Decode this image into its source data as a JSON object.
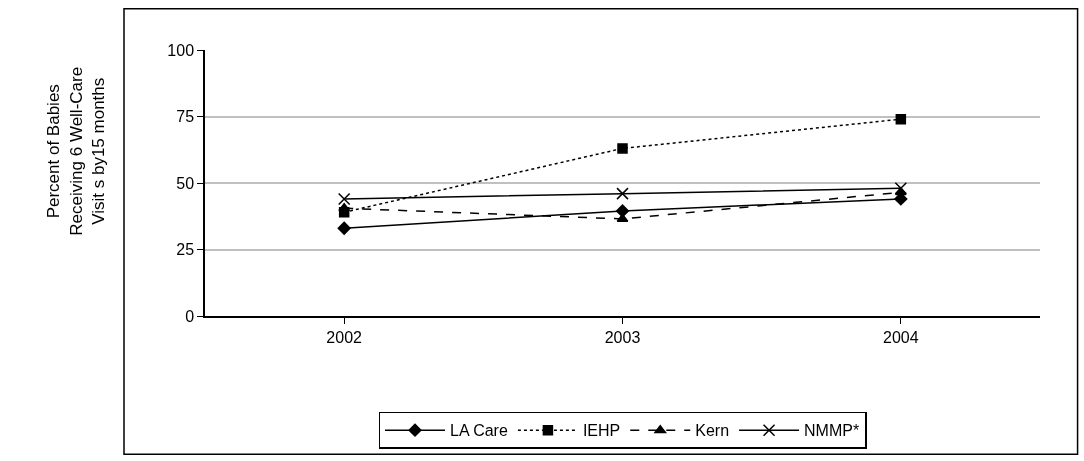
{
  "chart_data": {
    "type": "line",
    "ylabel": "Percent of Babies\nReceiving 6 Well-Care\nVisit s by15 months",
    "categories": [
      "2002",
      "2003",
      "2004"
    ],
    "series": [
      {
        "name": "LA Care",
        "color": "#000000",
        "values": [
          33,
          39.5,
          44
        ],
        "marker": "diamond",
        "line_style": "solid"
      },
      {
        "name": "IEHP",
        "color": "#000000",
        "values": [
          39,
          63,
          74
        ],
        "marker": "square",
        "line_style": "dotted"
      },
      {
        "name": "Kern",
        "color": "#000000",
        "values": [
          40.5,
          36.5,
          46.5
        ],
        "marker": "triangle",
        "line_style": "dashed"
      },
      {
        "name": "NMMP*",
        "color": "#000000",
        "values": [
          44,
          46,
          48
        ],
        "marker": "cross",
        "line_style": "solid"
      }
    ],
    "ylim": [
      0,
      100
    ],
    "yticks": [
      0,
      25,
      50,
      75,
      100
    ],
    "grid": "y",
    "legend": "bottom"
  }
}
